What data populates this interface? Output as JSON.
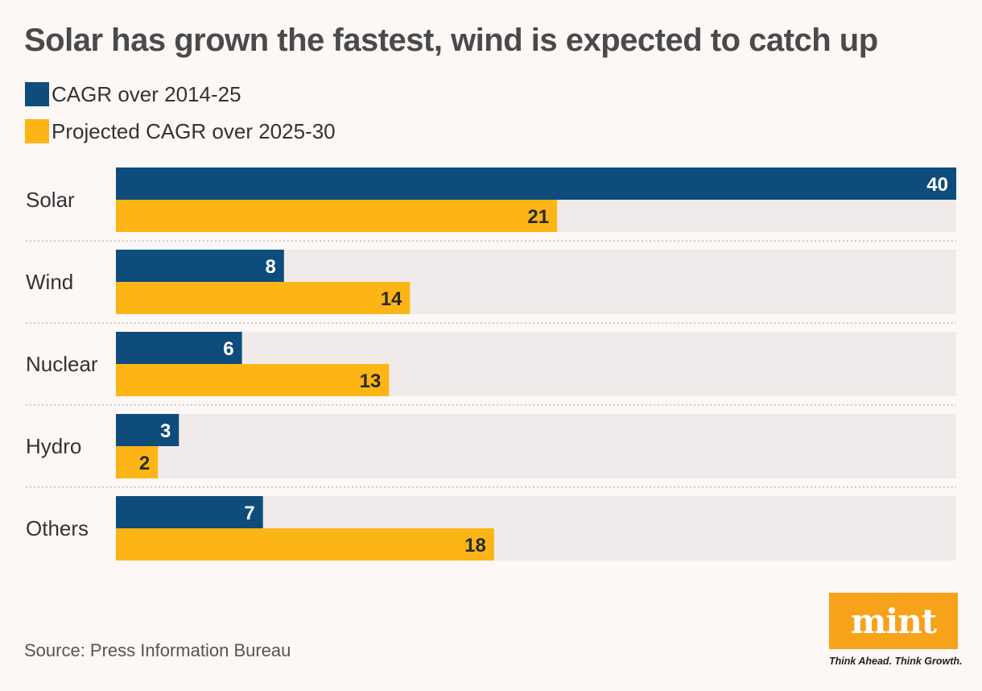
{
  "colors": {
    "series1": "#0e4c7c",
    "series2": "#fdb515",
    "track": "#f0ebea",
    "divider": "#c8c2c0"
  },
  "chart_data": {
    "type": "bar",
    "orientation": "horizontal",
    "title": "Solar has grown the fastest, wind is expected to catch up",
    "categories": [
      "Solar",
      "Wind",
      "Nuclear",
      "Hydro",
      "Others"
    ],
    "series": [
      {
        "name": "CAGR over 2014-25",
        "values": [
          40,
          8,
          6,
          3,
          7
        ]
      },
      {
        "name": "Projected CAGR over 2025-30",
        "values": [
          21,
          14,
          13,
          2,
          18
        ]
      }
    ],
    "xlim": [
      0,
      40
    ],
    "grid": false,
    "legend": "top-left",
    "data_labels": true
  },
  "source": "Source: Press Information Bureau",
  "brand": {
    "name": "mint",
    "tagline": "Think Ahead. Think Growth."
  }
}
